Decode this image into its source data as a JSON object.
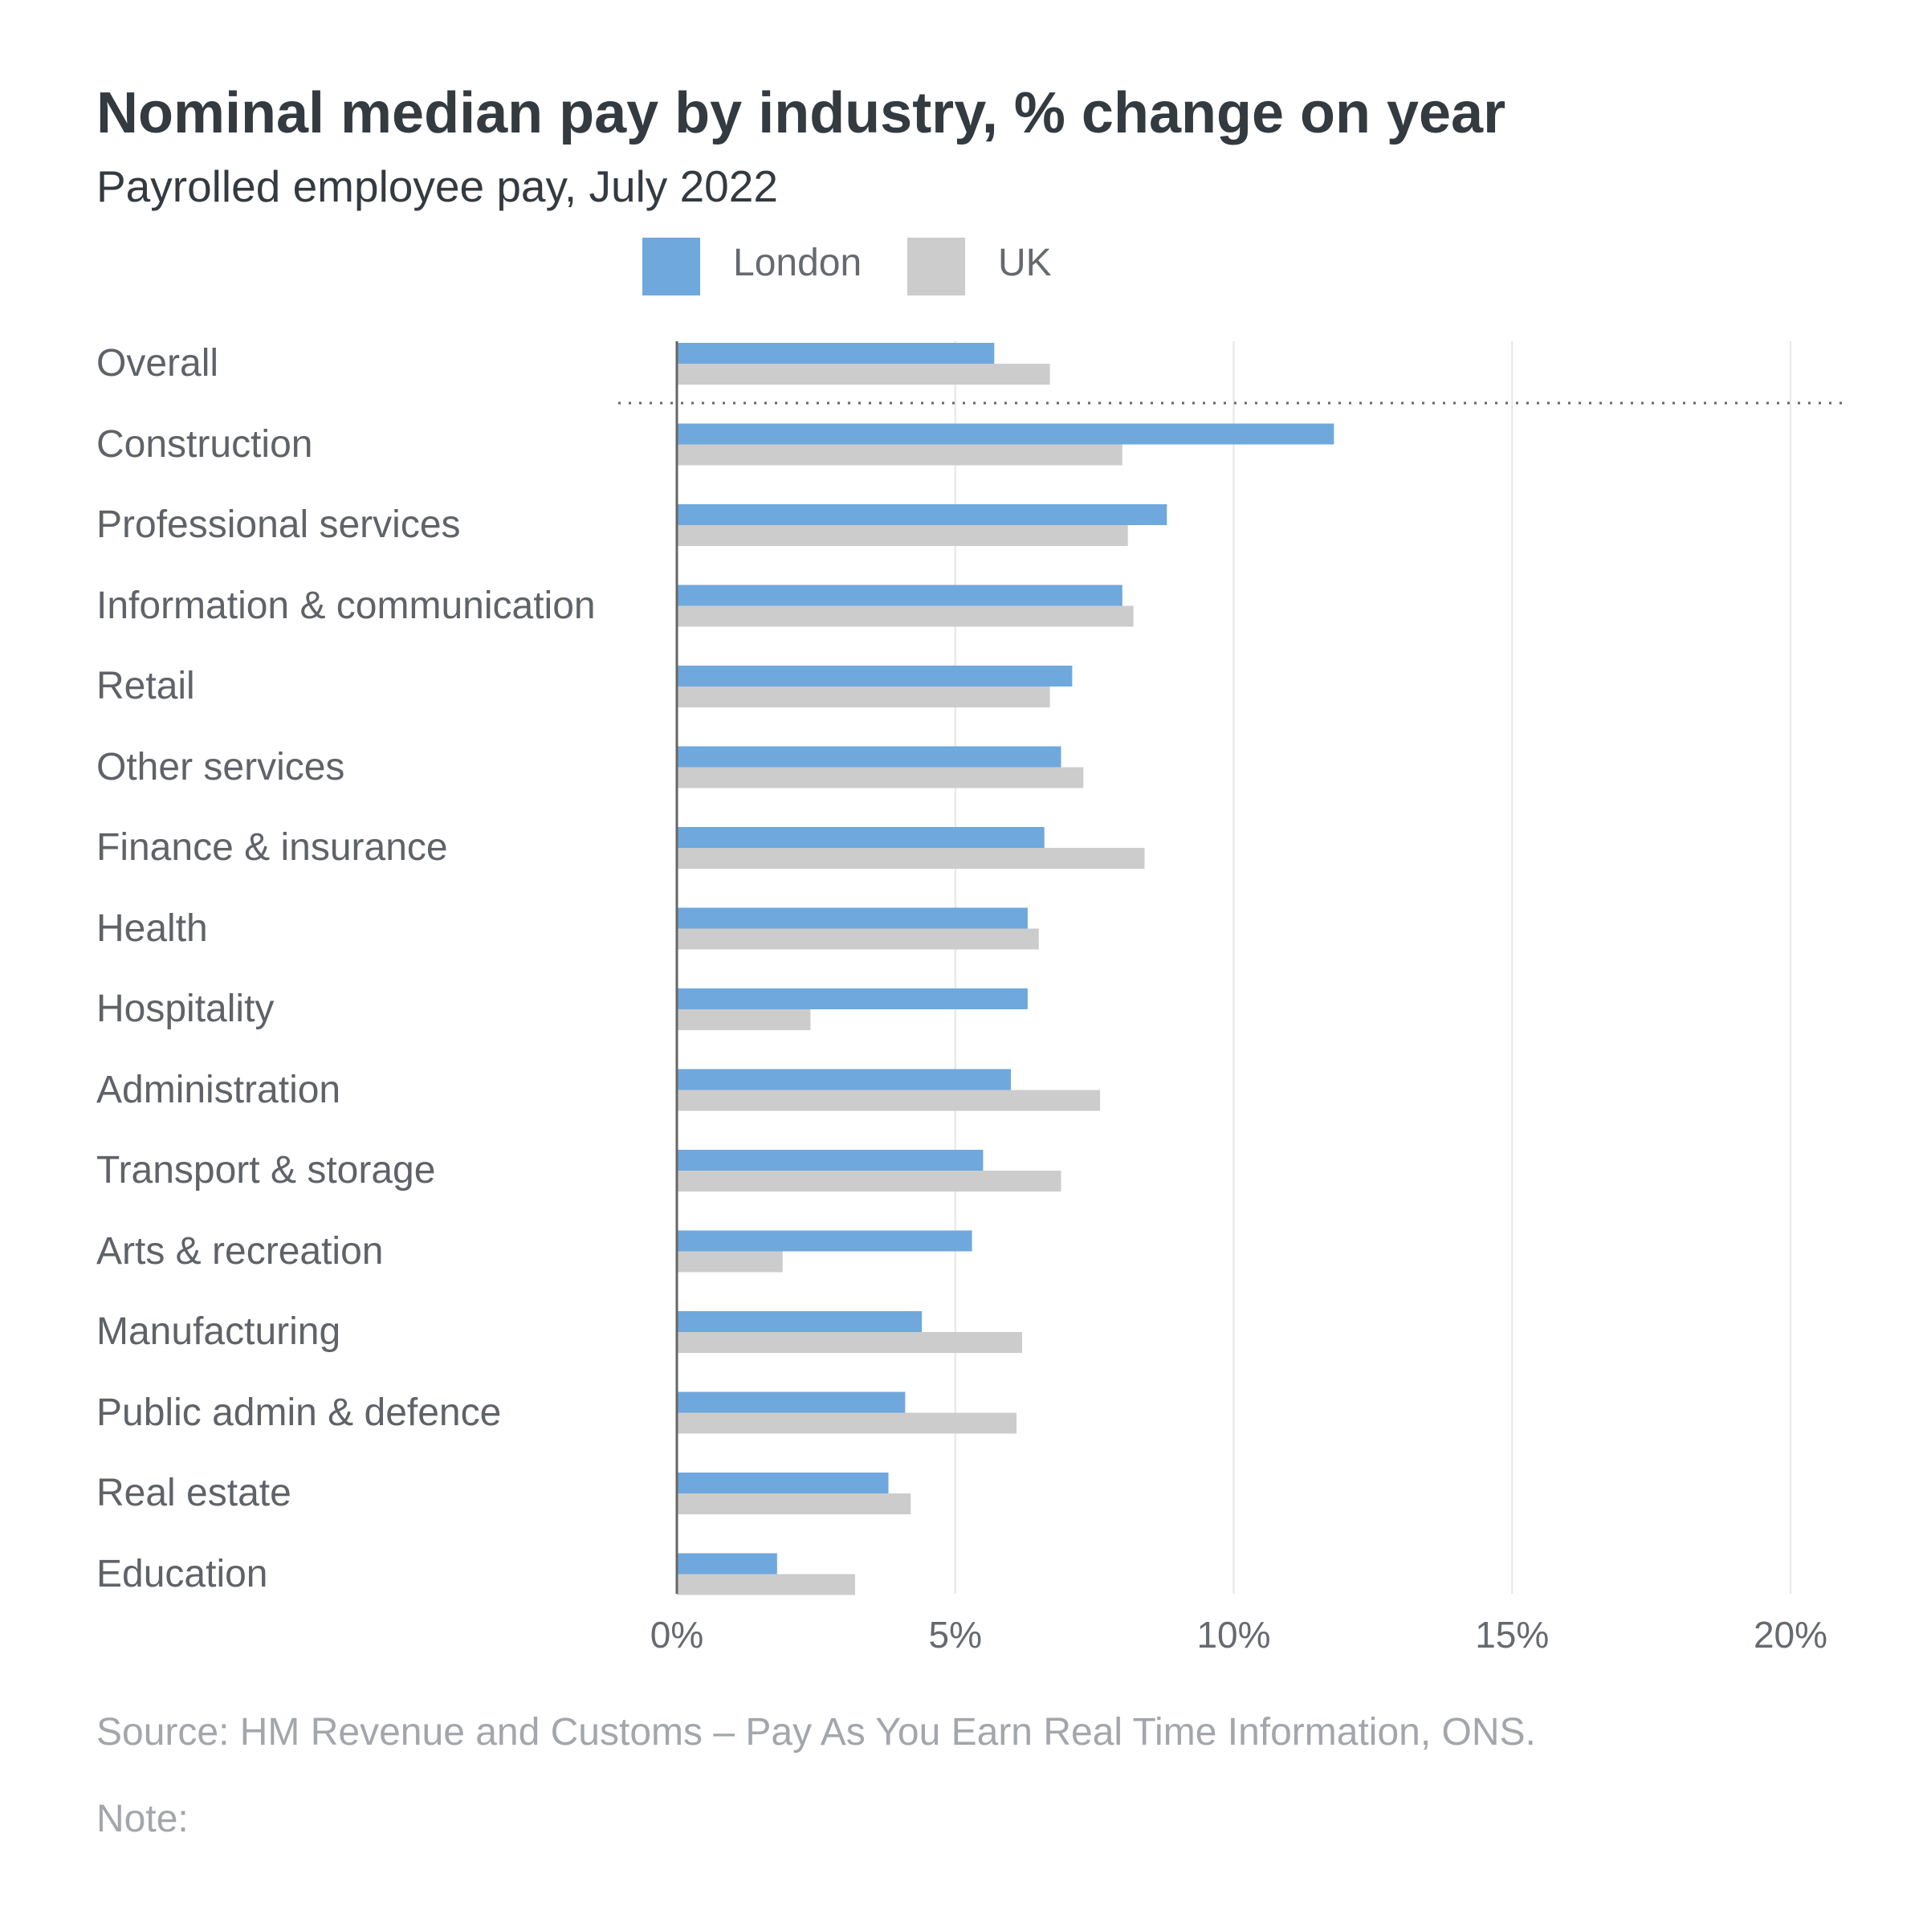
{
  "header": {
    "title": "Nominal median pay by industry, % change on year",
    "subtitle": "Payrolled employee pay, July 2022"
  },
  "footer": {
    "source": "Source: HM Revenue and Customs – Pay As You Earn Real Time Information, ONS.",
    "note": "Note:"
  },
  "colors": {
    "london": "#6fa8dc",
    "uk": "#cccccc",
    "axis": "#666666",
    "grid": "#e6e6e6",
    "separator": "#666666"
  },
  "chart_data": {
    "type": "bar",
    "orientation": "horizontal",
    "title": "Nominal median pay by industry, % change on year",
    "subtitle": "Payrolled employee pay, July 2022",
    "xlabel": "",
    "ylabel": "",
    "xlim": [
      0,
      20
    ],
    "x_ticks": [
      0,
      5,
      10,
      15,
      20
    ],
    "x_tick_labels": [
      "0%",
      "5%",
      "10%",
      "15%",
      "20%"
    ],
    "grid": true,
    "legend_position": "top",
    "categories": [
      "Overall",
      "Construction",
      "Professional services",
      "Information & communication",
      "Retail",
      "Other services",
      "Finance & insurance",
      "Health",
      "Hospitality",
      "Administration",
      "Transport & storage",
      "Arts & recreation",
      "Manufacturing",
      "Public admin & defence",
      "Real estate",
      "Education"
    ],
    "series": [
      {
        "name": "London",
        "color": "#6fa8dc",
        "values": [
          5.7,
          11.8,
          8.8,
          8.0,
          7.1,
          6.9,
          6.6,
          6.3,
          6.3,
          6.0,
          5.5,
          5.3,
          4.4,
          4.1,
          3.8,
          1.8
        ]
      },
      {
        "name": "UK",
        "color": "#cccccc",
        "values": [
          6.7,
          8.0,
          8.1,
          8.2,
          6.7,
          7.3,
          8.4,
          6.5,
          2.4,
          7.6,
          6.9,
          1.9,
          6.2,
          6.1,
          4.2,
          3.2
        ]
      }
    ]
  }
}
